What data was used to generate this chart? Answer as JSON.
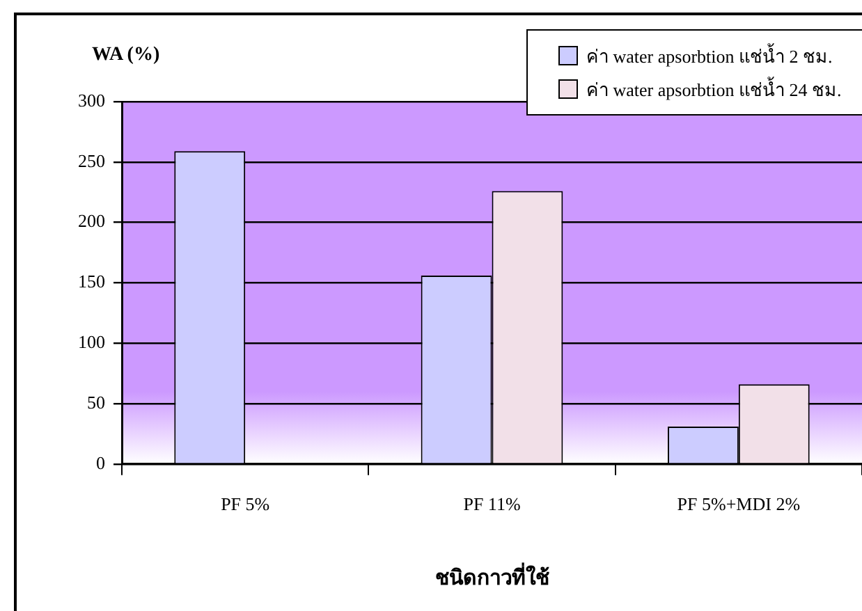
{
  "chart_data": {
    "type": "bar",
    "ylabel": "WA (%)",
    "xlabel": "ชนิดกาวที่ใช้",
    "categories": [
      "PF 5%",
      "PF 11%",
      "PF 5%+MDI 2%"
    ],
    "series": [
      {
        "name": "ค่า water apsorbtion แช่น้ำ 2 ชม.",
        "color": "#ccccff",
        "values": [
          259,
          156,
          31
        ]
      },
      {
        "name": "ค่า water apsorbtion แช่น้ำ 24 ชม.",
        "color": "#f2e0e8",
        "values": [
          null,
          226,
          66
        ]
      }
    ],
    "ylim": [
      0,
      300
    ],
    "yticks": [
      0,
      50,
      100,
      150,
      200,
      250,
      300
    ],
    "grid": "y",
    "legend": "top right"
  }
}
